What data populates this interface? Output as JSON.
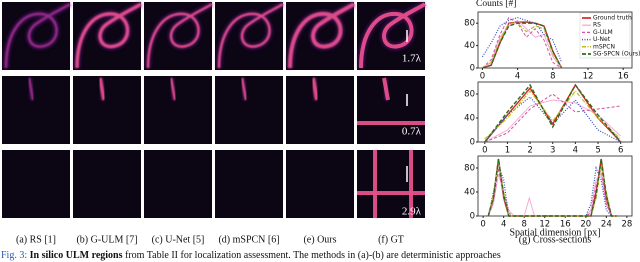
{
  "figure": {
    "panels": [
      "(a) RS [1]",
      "(b) G-ULM [7]",
      "(c) U-Net [5]",
      "(d) mSPCN [6]",
      "(e) Ours",
      "(f) GT",
      "(g) Cross-sections"
    ],
    "scale_labels": [
      "1.7λ",
      "0.7λ",
      "2.9λ"
    ],
    "caption": {
      "label": "Fig. 3:",
      "bold": "In silico ULM regions",
      "text": " from Table II for localization assessment. The methods in (a)-(b) are deterministic approaches"
    }
  },
  "chart_data": [
    {
      "type": "line",
      "ylabel": "Counts [#]",
      "legend": "upper right",
      "x": [
        0,
        1,
        2,
        3,
        4,
        5,
        6,
        7,
        8,
        9
      ],
      "xlim": [
        -0.5,
        17
      ],
      "xticks": [
        0,
        4,
        8,
        12,
        16
      ],
      "ylim": [
        0,
        100
      ],
      "yticks": [
        0,
        40,
        80
      ],
      "series": [
        {
          "name": "Ground truth",
          "color": "#d62728",
          "values": [
            0,
            5,
            45,
            80,
            82,
            82,
            80,
            75,
            30,
            0
          ]
        },
        {
          "name": "RS",
          "color": "#f2a5d6",
          "values": [
            0,
            10,
            55,
            75,
            85,
            70,
            55,
            60,
            20,
            0
          ]
        },
        {
          "name": "G-ULM",
          "color": "#d64fa0",
          "values": [
            0,
            15,
            60,
            90,
            80,
            55,
            70,
            50,
            10,
            0
          ]
        },
        {
          "name": "U-Net",
          "color": "#3b4cc0",
          "values": [
            20,
            45,
            75,
            85,
            90,
            85,
            80,
            60,
            50,
            10
          ]
        },
        {
          "name": "mSPCN",
          "color": "#bcbd22",
          "values": [
            0,
            10,
            50,
            80,
            80,
            65,
            75,
            70,
            25,
            0
          ]
        },
        {
          "name": "SG-SPCN (Ours)",
          "color": "#2e6b1f",
          "values": [
            0,
            5,
            45,
            75,
            80,
            80,
            80,
            75,
            30,
            0
          ]
        }
      ]
    },
    {
      "type": "line",
      "x": [
        0,
        1,
        2,
        3,
        4,
        5,
        6
      ],
      "xlim": [
        -0.3,
        6.5
      ],
      "xticks": [
        0,
        1,
        2,
        3,
        4,
        5,
        6
      ],
      "ylim": [
        0,
        100
      ],
      "yticks": [
        0,
        40,
        80
      ],
      "series": [
        {
          "color": "#d62728",
          "values": [
            0,
            45,
            90,
            30,
            95,
            40,
            0
          ]
        },
        {
          "color": "#f2a5d6",
          "values": [
            0,
            20,
            60,
            70,
            65,
            45,
            10
          ]
        },
        {
          "color": "#d64fa0",
          "values": [
            0,
            15,
            55,
            80,
            50,
            55,
            60
          ]
        },
        {
          "color": "#3b4cc0",
          "values": [
            0,
            45,
            75,
            30,
            70,
            20,
            0
          ]
        },
        {
          "color": "#bcbd22",
          "values": [
            5,
            40,
            85,
            35,
            85,
            40,
            5
          ]
        },
        {
          "color": "#2e6b1f",
          "values": [
            0,
            50,
            95,
            25,
            95,
            45,
            0
          ]
        }
      ]
    },
    {
      "type": "line",
      "xlabel": "Spatial dimension [px]",
      "x": [
        1,
        2,
        3,
        4,
        5,
        6,
        7,
        8,
        9,
        10,
        20,
        21,
        22,
        23,
        24,
        25,
        26
      ],
      "xlim": [
        -1,
        29
      ],
      "xticks": [
        0,
        4,
        8,
        12,
        16,
        20,
        24,
        28
      ],
      "ylim": [
        0,
        100
      ],
      "yticks": [
        0,
        40,
        80
      ],
      "series": [
        {
          "color": "#d62728",
          "values": [
            0,
            30,
            95,
            30,
            0,
            0,
            0,
            0,
            0,
            0,
            0,
            0,
            40,
            95,
            30,
            0,
            0
          ]
        },
        {
          "color": "#f2a5d6",
          "values": [
            0,
            20,
            70,
            40,
            10,
            0,
            0,
            0,
            30,
            0,
            0,
            10,
            60,
            70,
            20,
            0,
            0
          ]
        },
        {
          "color": "#d64fa0",
          "values": [
            0,
            25,
            80,
            30,
            5,
            0,
            0,
            0,
            0,
            0,
            0,
            5,
            50,
            80,
            20,
            0,
            0
          ]
        },
        {
          "color": "#3b4cc0",
          "values": [
            0,
            40,
            85,
            60,
            0,
            0,
            0,
            0,
            0,
            0,
            0,
            20,
            80,
            60,
            10,
            0,
            0
          ]
        },
        {
          "color": "#bcbd22",
          "values": [
            0,
            35,
            90,
            40,
            0,
            0,
            0,
            0,
            0,
            0,
            0,
            0,
            30,
            85,
            40,
            0,
            0
          ]
        },
        {
          "color": "#2e6b1f",
          "values": [
            0,
            30,
            95,
            35,
            0,
            0,
            0,
            0,
            0,
            0,
            0,
            0,
            35,
            95,
            35,
            0,
            0
          ]
        }
      ]
    }
  ]
}
